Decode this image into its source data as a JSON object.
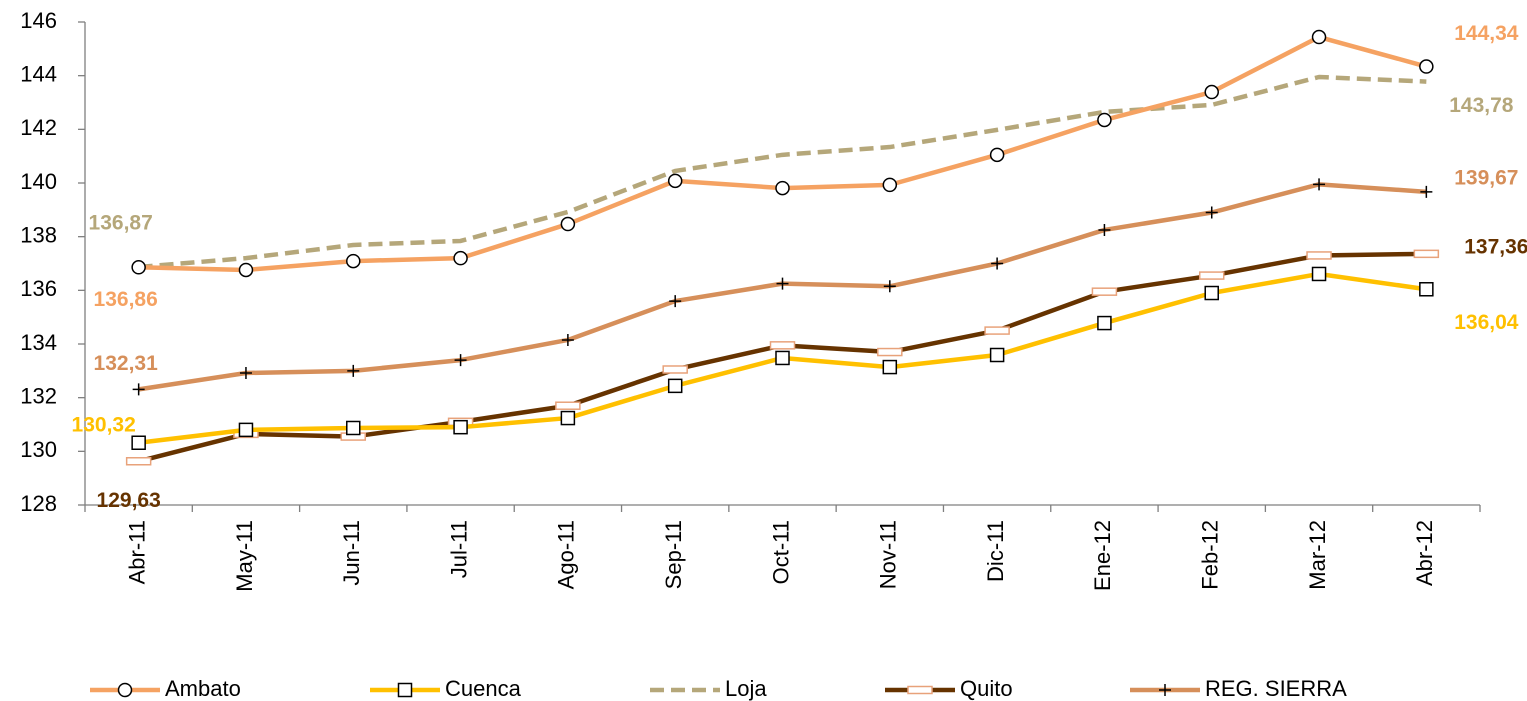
{
  "chart_data": {
    "type": "line",
    "categories": [
      "Abr-11",
      "May-11",
      "Jun-11",
      "Jul-11",
      "Ago-11",
      "Sep-11",
      "Oct-11",
      "Nov-11",
      "Dic-11",
      "Ene-12",
      "Feb-12",
      "Mar-12",
      "Abr-12"
    ],
    "ylim": [
      128,
      146
    ],
    "yticks": [
      128,
      130,
      132,
      134,
      136,
      138,
      140,
      142,
      144,
      146
    ],
    "legend": "bottom",
    "series": [
      {
        "name": "Ambato",
        "color": "#f5a262",
        "marker": "circle",
        "values": [
          136.86,
          136.76,
          137.09,
          137.2,
          138.47,
          140.08,
          139.81,
          139.93,
          141.05,
          142.35,
          143.39,
          145.44,
          144.34
        ],
        "value_labels": [
          "136,86",
          null,
          null,
          null,
          null,
          null,
          null,
          null,
          null,
          null,
          null,
          null,
          "144,34"
        ]
      },
      {
        "name": "Cuenca",
        "color": "#ffc000",
        "marker": "square",
        "values": [
          130.32,
          130.8,
          130.87,
          130.9,
          131.24,
          132.44,
          133.48,
          133.14,
          133.59,
          134.78,
          135.9,
          136.61,
          136.04
        ],
        "value_labels": [
          "130,32",
          null,
          null,
          null,
          null,
          null,
          null,
          null,
          null,
          null,
          null,
          null,
          "136,04"
        ]
      },
      {
        "name": "Loja",
        "color": "#b5a77a",
        "dashed": true,
        "values": [
          136.87,
          137.2,
          137.69,
          137.84,
          138.92,
          140.45,
          141.05,
          141.34,
          141.98,
          142.65,
          142.91,
          143.95,
          143.78
        ],
        "value_labels": [
          "136,87",
          null,
          null,
          null,
          null,
          null,
          null,
          null,
          null,
          null,
          null,
          null,
          "143,78"
        ]
      },
      {
        "name": "Quito",
        "color": "#663300",
        "marker": "bar",
        "values": [
          129.63,
          130.65,
          130.55,
          131.1,
          131.7,
          133.05,
          133.95,
          133.7,
          134.5,
          135.95,
          136.55,
          137.3,
          137.36
        ],
        "value_labels": [
          "129,63",
          null,
          null,
          null,
          null,
          null,
          null,
          null,
          null,
          null,
          null,
          null,
          "137,36"
        ]
      },
      {
        "name": "REG. SIERRA",
        "color": "#d68f5a",
        "marker": "plus",
        "values": [
          132.31,
          132.92,
          133.0,
          133.4,
          134.15,
          135.6,
          136.25,
          136.15,
          137.0,
          138.25,
          138.9,
          139.95,
          139.67
        ],
        "value_labels": [
          "132,31",
          null,
          null,
          null,
          null,
          null,
          null,
          null,
          null,
          null,
          null,
          null,
          "139,67"
        ]
      }
    ]
  }
}
